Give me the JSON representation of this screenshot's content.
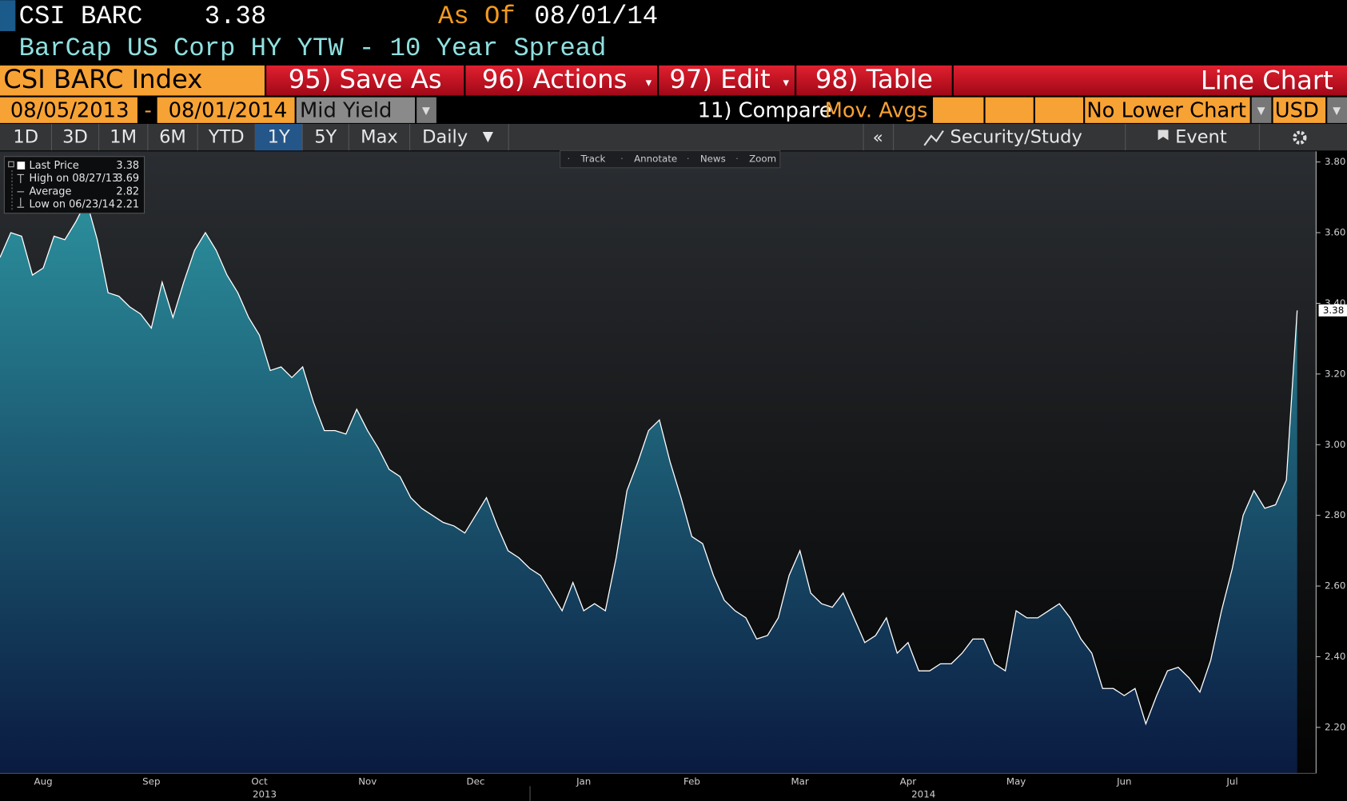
{
  "header": {
    "ticker": "CSI BARC",
    "price": "3.38",
    "as_of_label": "As Of",
    "as_of_date": "08/01/14",
    "description": "BarCap US Corp HY YTW - 10 Year Spread"
  },
  "menu": {
    "security": "CSI BARC Index",
    "buttons": [
      "95) Save As",
      "96) Actions",
      "97) Edit",
      "98) Table"
    ],
    "view": "Line Chart"
  },
  "fields": {
    "start": "08/05/2013",
    "separator": "-",
    "end": "08/01/2014",
    "field": "Mid Yield",
    "compare": "11) Compare",
    "mov_avgs": "Mov. Avgs",
    "lower_chart": "No Lower Chart",
    "currency": "USD"
  },
  "tabs": {
    "periods": [
      "1D",
      "3D",
      "1M",
      "6M",
      "YTD",
      "1Y",
      "5Y",
      "Max"
    ],
    "selected": "1Y",
    "frequency": "Daily",
    "security_study": "Security/Study",
    "event": "Event"
  },
  "chart_data": {
    "type": "area",
    "categories": [
      null,
      null,
      null,
      null,
      "Aug",
      null,
      null,
      null,
      null,
      null,
      null,
      null,
      null,
      null,
      "Sep",
      null,
      null,
      null,
      null,
      null,
      null,
      null,
      null,
      null,
      "Oct",
      null,
      null,
      null,
      null,
      null,
      null,
      null,
      null,
      null,
      "Nov",
      null,
      null,
      null,
      null,
      null,
      null,
      null,
      null,
      null,
      "Dec",
      null,
      null,
      null,
      null,
      null,
      null,
      null,
      null,
      null,
      "Jan",
      null,
      null,
      null,
      null,
      null,
      null,
      null,
      null,
      null,
      "Feb",
      null,
      null,
      null,
      null,
      null,
      null,
      null,
      null,
      null,
      "Mar",
      null,
      null,
      null,
      null,
      null,
      null,
      null,
      null,
      null,
      "Apr",
      null,
      null,
      null,
      null,
      null,
      null,
      null,
      null,
      null,
      "May",
      null,
      null,
      null,
      null,
      null,
      null,
      null,
      null,
      null,
      "Jun",
      null,
      null,
      null,
      null,
      null,
      null,
      null,
      null,
      null,
      "Jul",
      null,
      null,
      null,
      null,
      null,
      null
    ],
    "values": [
      3.53,
      3.6,
      3.59,
      3.48,
      3.5,
      3.59,
      3.58,
      3.63,
      3.69,
      3.58,
      3.43,
      3.42,
      3.39,
      3.37,
      3.33,
      3.46,
      3.36,
      3.46,
      3.55,
      3.6,
      3.55,
      3.48,
      3.43,
      3.36,
      3.31,
      3.21,
      3.22,
      3.19,
      3.22,
      3.12,
      3.04,
      3.04,
      3.03,
      3.1,
      3.04,
      2.99,
      2.93,
      2.91,
      2.85,
      2.82,
      2.8,
      2.78,
      2.77,
      2.75,
      2.8,
      2.85,
      2.77,
      2.7,
      2.68,
      2.65,
      2.63,
      2.58,
      2.53,
      2.61,
      2.53,
      2.55,
      2.53,
      2.68,
      2.87,
      2.95,
      3.04,
      3.07,
      2.95,
      2.85,
      2.74,
      2.72,
      2.63,
      2.56,
      2.53,
      2.51,
      2.45,
      2.46,
      2.51,
      2.63,
      2.7,
      2.58,
      2.55,
      2.54,
      2.58,
      2.51,
      2.44,
      2.46,
      2.51,
      2.41,
      2.44,
      2.36,
      2.36,
      2.38,
      2.38,
      2.41,
      2.45,
      2.45,
      2.38,
      2.36,
      2.53,
      2.51,
      2.51,
      2.53,
      2.55,
      2.51,
      2.45,
      2.41,
      2.31,
      2.31,
      2.29,
      2.31,
      2.21,
      2.29,
      2.36,
      2.37,
      2.34,
      2.3,
      2.39,
      2.53,
      2.65,
      2.8,
      2.87,
      2.82,
      2.83,
      2.9,
      3.38
    ],
    "color": "#ffffff",
    "fill_top": "#2b8f9c",
    "fill_bottom": "#0a1a40",
    "ylim": [
      2.07,
      3.83
    ],
    "yticks": [
      {
        "value": 2.2,
        "label": "2.20"
      },
      {
        "value": 2.4,
        "label": "2.40"
      },
      {
        "value": 2.6,
        "label": "2.60"
      },
      {
        "value": 2.8,
        "label": "2.80"
      },
      {
        "value": 3.0,
        "label": "3.00"
      },
      {
        "value": 3.2,
        "label": "3.20"
      },
      {
        "value": 3.4,
        "label": "3.40"
      },
      {
        "value": 3.6,
        "label": "3.60"
      },
      {
        "value": 3.8,
        "label": "3.80"
      }
    ],
    "year_labels": [
      "2013",
      "2014"
    ],
    "last_label": "3.38",
    "legend_corner": "upper left",
    "legend": [
      {
        "label": "Last Price",
        "value": "3.38"
      },
      {
        "label": "High on 08/27/13",
        "value": "3.69"
      },
      {
        "label": "Average",
        "value": "2.82"
      },
      {
        "label": "Low on 06/23/14",
        "value": "2.21"
      }
    ],
    "tools": [
      "Track",
      "Annotate",
      "News",
      "Zoom"
    ]
  }
}
